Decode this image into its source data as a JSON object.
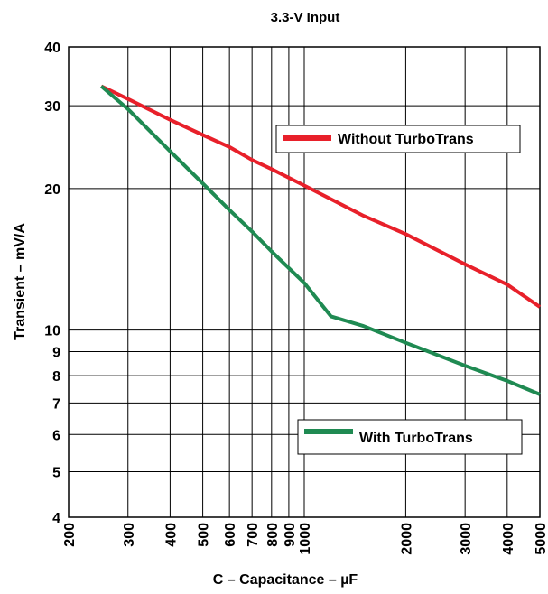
{
  "chart_data": {
    "type": "line",
    "title": "3.3-V Input",
    "xlabel": "C – Capacitance – µF",
    "ylabel": "Transient – mV/A",
    "xscale": "log",
    "yscale": "log",
    "xlim": [
      200,
      5000
    ],
    "ylim": [
      4,
      40
    ],
    "grid": true,
    "x_ticks": [
      200,
      300,
      400,
      500,
      600,
      700,
      800,
      900,
      1000,
      2000,
      3000,
      4000,
      5000
    ],
    "x_tick_labels": [
      "200",
      "300",
      "400",
      "500",
      "600",
      "700",
      "800",
      "900",
      "1000",
      "2000",
      "3000",
      "4000",
      "5000"
    ],
    "y_ticks": [
      4,
      5,
      6,
      7,
      8,
      9,
      10,
      20,
      30,
      40
    ],
    "y_tick_labels": [
      "4",
      "5",
      "6",
      "7",
      "8",
      "9",
      "10",
      "20",
      "30",
      "40"
    ],
    "series": [
      {
        "name": "Without TurboTrans",
        "color": "#e8202a",
        "x": [
          250,
          300,
          400,
          500,
          600,
          700,
          800,
          1000,
          1500,
          2000,
          3000,
          4000,
          5000
        ],
        "y": [
          33,
          31,
          28,
          26,
          24.5,
          23,
          22,
          20.3,
          17.5,
          16,
          13.8,
          12.5,
          11.2
        ]
      },
      {
        "name": "With TurboTrans",
        "color": "#1f8a52",
        "x": [
          250,
          300,
          400,
          500,
          600,
          700,
          800,
          1000,
          1200,
          1500,
          2000,
          3000,
          4000,
          5000
        ],
        "y": [
          33,
          29.5,
          24,
          20.5,
          18,
          16.2,
          14.7,
          12.6,
          10.7,
          10.2,
          9.4,
          8.4,
          7.8,
          7.3
        ]
      }
    ],
    "legend": [
      {
        "label": "Without TurboTrans",
        "color": "#e8202a",
        "placement": "upper-right"
      },
      {
        "label": "With TurboTrans",
        "color": "#1f8a52",
        "placement": "lower-right"
      }
    ]
  }
}
